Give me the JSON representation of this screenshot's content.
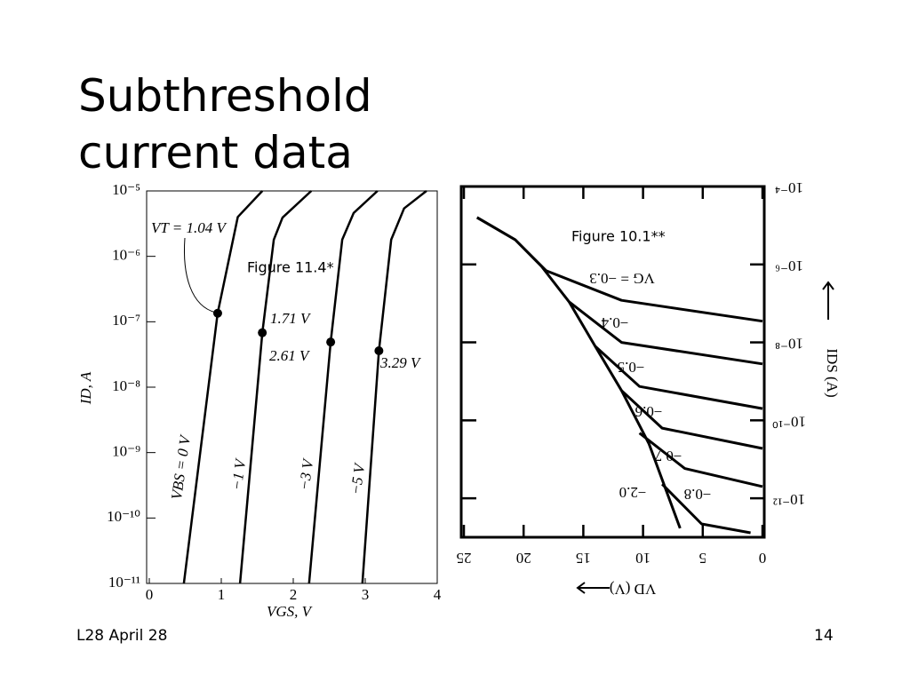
{
  "slide": {
    "title": "Subthreshold current data",
    "footer": "L28 April 28",
    "page_number": "14"
  },
  "chart_data": [
    {
      "type": "line",
      "title": "Figure 11.4*",
      "x_label": "VGS, V",
      "y_label": "ID, A",
      "log_y": true,
      "xlim": [
        0,
        4
      ],
      "xticks": [
        0,
        1,
        2,
        3,
        4
      ],
      "ylim": [
        1e-11,
        1e-05
      ],
      "yticks": [
        {
          "value": 1e-11,
          "label": "10⁻¹¹"
        },
        {
          "value": 1e-10,
          "label": "10⁻¹⁰"
        },
        {
          "value": 1e-09,
          "label": "10⁻⁹"
        },
        {
          "value": 1e-08,
          "label": "10⁻⁸"
        },
        {
          "value": 1e-07,
          "label": "10⁻⁷"
        },
        {
          "value": 1e-06,
          "label": "10⁻⁶"
        },
        {
          "value": 1e-05,
          "label": "10⁻⁵"
        }
      ],
      "color": "#000000",
      "series": [
        {
          "name": "VBS = 0 V",
          "x": [
            0.48,
            0.95,
            1.23,
            1.57
          ],
          "values": [
            1e-11,
            1.35e-07,
            4e-06,
            1e-05
          ]
        },
        {
          "name": "−1 V",
          "x": [
            1.26,
            1.57,
            1.73,
            1.85,
            2.25
          ],
          "values": [
            1e-11,
            6.8e-08,
            1.8e-06,
            3.9e-06,
            1e-05
          ]
        },
        {
          "name": "−3 V",
          "x": [
            2.22,
            2.52,
            2.68,
            2.84,
            3.17
          ],
          "values": [
            1e-11,
            4.9e-08,
            1.8e-06,
            4.6e-06,
            1e-05
          ]
        },
        {
          "name": "−5 V",
          "x": [
            2.96,
            3.19,
            3.36,
            3.54,
            3.85
          ],
          "values": [
            1e-11,
            3.6e-08,
            1.8e-06,
            5.4e-06,
            1e-05
          ]
        }
      ],
      "annotations": [
        "VT = 1.04 V",
        "1.71 V",
        "2.61 V",
        "3.29 V"
      ]
    },
    {
      "type": "line",
      "title": "Figure 10.1**",
      "x_label": "VD (V)",
      "y_label": "IDS (A)",
      "log_y": true,
      "xlim": [
        25,
        0
      ],
      "xticks": [
        0,
        5,
        10,
        15,
        20,
        25
      ],
      "ylim": [
        1e-13,
        0.0001
      ],
      "yticks": [
        {
          "value": 0.0001,
          "label": "10⁻⁴"
        },
        {
          "value": 1e-06,
          "label": "10⁻⁶"
        },
        {
          "value": 1e-08,
          "label": "10⁻⁸"
        },
        {
          "value": 1e-10,
          "label": "10⁻¹⁰"
        },
        {
          "value": 1e-12,
          "label": "10⁻¹²"
        }
      ],
      "color": "#000000",
      "series": [
        {
          "name": "VG = −0.3",
          "x": [
            23.9,
            20.7,
            18.1,
            11.8,
            0
          ],
          "values": [
            1.6e-05,
            4.3e-06,
            6.9e-07,
            1.2e-07,
            3.5e-08
          ]
        },
        {
          "name": "−0.4",
          "x": [
            16.2,
            11.8,
            0
          ],
          "values": [
            1.1e-07,
            1e-08,
            2.8e-09
          ]
        },
        {
          "name": "−0.5",
          "x": [
            14.0,
            10.3,
            0
          ],
          "values": [
            7.9e-09,
            7.4e-10,
            2e-10
          ]
        },
        {
          "name": "−0.6",
          "x": [
            11.8,
            8.4,
            0
          ],
          "values": [
            5.8e-10,
            6.3e-11,
            1.9e-11
          ]
        },
        {
          "name": "−0.7",
          "x": [
            10.3,
            6.5,
            0
          ],
          "values": [
            4.7e-11,
            5.8e-12,
            2e-12
          ]
        },
        {
          "name": "−0.8",
          "x": [
            8.4,
            5.1,
            1.0
          ],
          "values": [
            2.3e-12,
            2.2e-13,
            1.3e-13
          ]
        },
        {
          "name": "−2.0",
          "x": [
            23.9,
            20.7,
            18.5,
            16.2,
            14.0,
            11.8,
            9.5,
            6.9
          ],
          "values": [
            1.6e-05,
            4.3e-06,
            8.9e-07,
            1.1e-07,
            7.9e-09,
            5.8e-10,
            2.5e-11,
            1.7e-13
          ]
        }
      ]
    }
  ]
}
